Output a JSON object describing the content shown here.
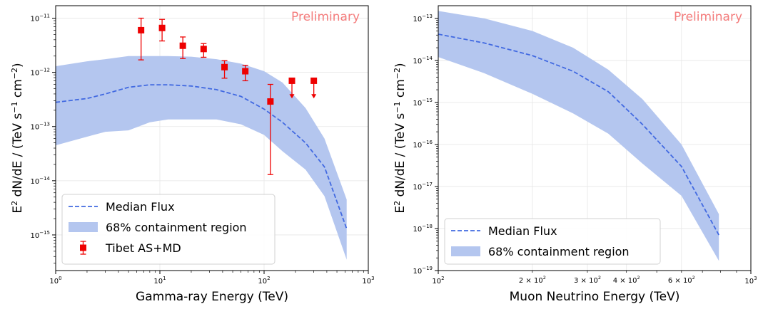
{
  "chart_data": [
    {
      "type": "line",
      "xscale": "log",
      "yscale": "log",
      "xlabel": "Gamma-ray Energy (TeV)",
      "ylabel_main": "E",
      "ylabel_sup": "2",
      "ylabel_rest": " dN/dE / (TeV s",
      "ylabel_unit_sup1": "−1",
      "ylabel_mid": " cm",
      "ylabel_unit_sup2": "−2",
      "ylabel_end": ")",
      "watermark": "Preliminary",
      "xlim": [
        1,
        1000
      ],
      "ylim": [
        2.2e-16,
        1.7e-11
      ],
      "xticks": [
        {
          "v": 1,
          "b": "10",
          "e": "0"
        },
        {
          "v": 10,
          "b": "10",
          "e": "1"
        },
        {
          "v": 100,
          "b": "10",
          "e": "2"
        },
        {
          "v": 1000,
          "b": "10",
          "e": "3"
        }
      ],
      "yticks": [
        {
          "v": 1e-15,
          "b": "10",
          "e": "−15"
        },
        {
          "v": 1e-14,
          "b": "10",
          "e": "−14"
        },
        {
          "v": 1e-13,
          "b": "10",
          "e": "−13"
        },
        {
          "v": 1e-12,
          "b": "10",
          "e": "−12"
        },
        {
          "v": 1e-11,
          "b": "10",
          "e": "−11"
        }
      ],
      "grid": true,
      "legend_position": "lower-left",
      "legend": [
        "Median Flux",
        "68% containment region",
        "Tibet AS+MD"
      ],
      "colors": {
        "median": "#4169e1",
        "band": "#b4c6ef",
        "data": "#ee0000",
        "watermark": "#f47c7c"
      },
      "series": [
        {
          "name": "Median Flux",
          "style": "dashed",
          "x": [
            1,
            2,
            3,
            5,
            8,
            12,
            20,
            35,
            60,
            100,
            150,
            250,
            380,
            620
          ],
          "y": [
            2.8e-13,
            3.3e-13,
            4e-13,
            5.3e-13,
            5.9e-13,
            5.9e-13,
            5.6e-13,
            4.8e-13,
            3.6e-13,
            2.1e-13,
            1.2e-13,
            5e-14,
            1.8e-14,
            1.3e-15
          ]
        },
        {
          "name": "68% containment region",
          "style": "band",
          "x": [
            1,
            2,
            3,
            5,
            8,
            12,
            20,
            35,
            60,
            100,
            150,
            250,
            380,
            620
          ],
          "y_low": [
            4.5e-14,
            6.5e-14,
            8e-14,
            8.5e-14,
            1.2e-13,
            1.35e-13,
            1.35e-13,
            1.35e-13,
            1.1e-13,
            7e-14,
            3.5e-14,
            1.6e-14,
            5.2e-15,
            3.5e-16
          ],
          "y_high": [
            1.3e-12,
            1.6e-12,
            1.75e-12,
            2e-12,
            2e-12,
            2e-12,
            1.95e-12,
            1.75e-12,
            1.45e-12,
            1.05e-12,
            6.5e-13,
            2.2e-13,
            6e-14,
            4.5e-15
          ]
        },
        {
          "name": "Tibet AS+MD",
          "style": "points",
          "points": [
            {
              "x": 6.6,
              "y": 6e-12,
              "lo": 1.7e-12,
              "hi": 1e-11
            },
            {
              "x": 10.5,
              "y": 6.6e-12,
              "lo": 3.8e-12,
              "hi": 9.5e-12
            },
            {
              "x": 16.6,
              "y": 3.1e-12,
              "lo": 1.8e-12,
              "hi": 4.5e-12
            },
            {
              "x": 26.3,
              "y": 2.7e-12,
              "lo": 1.9e-12,
              "hi": 3.4e-12
            },
            {
              "x": 41.7,
              "y": 1.25e-12,
              "lo": 7.8e-13,
              "hi": 1.65e-12
            },
            {
              "x": 66,
              "y": 1.05e-12,
              "lo": 7e-13,
              "hi": 1.35e-12
            },
            {
              "x": 115,
              "y": 2.9e-13,
              "lo": 1.3e-14,
              "hi": 6e-13
            }
          ],
          "upper_limits": [
            {
              "x": 185,
              "y": 7e-13,
              "arrow_to": 3.3e-13
            },
            {
              "x": 300,
              "y": 7e-13,
              "arrow_to": 3.3e-13
            }
          ]
        }
      ]
    },
    {
      "type": "line",
      "xscale": "log",
      "yscale": "log",
      "xlabel": "Muon Neutrino Energy (TeV)",
      "ylabel_main": "E",
      "ylabel_sup": "2",
      "ylabel_rest": " dN/dE / (TeV s",
      "ylabel_unit_sup1": "−1",
      "ylabel_mid": " cm",
      "ylabel_unit_sup2": "−2",
      "ylabel_end": ")",
      "watermark": "Preliminary",
      "xlim": [
        100,
        1000
      ],
      "ylim": [
        1e-19,
        2e-13
      ],
      "xticks": [
        {
          "v": 100,
          "b": "10",
          "e": "2"
        },
        {
          "v": 1000,
          "b": "10",
          "e": "3"
        }
      ],
      "xticks_minor_labeled": [
        {
          "v": 200,
          "m": "2 × 10",
          "e": "2"
        },
        {
          "v": 300,
          "m": "3 × 10",
          "e": "2"
        },
        {
          "v": 400,
          "m": "4 × 10",
          "e": "2"
        },
        {
          "v": 600,
          "m": "6 × 10",
          "e": "2"
        }
      ],
      "yticks": [
        {
          "v": 1e-19,
          "b": "10",
          "e": "−19"
        },
        {
          "v": 1e-18,
          "b": "10",
          "e": "−18"
        },
        {
          "v": 1e-17,
          "b": "10",
          "e": "−17"
        },
        {
          "v": 1e-16,
          "b": "10",
          "e": "−16"
        },
        {
          "v": 1e-15,
          "b": "10",
          "e": "−15"
        },
        {
          "v": 1e-14,
          "b": "10",
          "e": "−14"
        },
        {
          "v": 1e-13,
          "b": "10",
          "e": "−13"
        }
      ],
      "grid": true,
      "legend_position": "lower-left",
      "legend": [
        "Median Flux",
        "68% containment region"
      ],
      "colors": {
        "median": "#4169e1",
        "band": "#b4c6ef",
        "watermark": "#f47c7c"
      },
      "series": [
        {
          "name": "Median Flux",
          "style": "dashed",
          "x": [
            100,
            140,
            200,
            270,
            350,
            450,
            600,
            790
          ],
          "y": [
            4.2e-14,
            2.6e-14,
            1.3e-14,
            5.5e-15,
            1.8e-15,
            3e-16,
            3e-17,
            7e-19
          ]
        },
        {
          "name": "68% containment region",
          "style": "band",
          "x": [
            100,
            140,
            200,
            270,
            350,
            450,
            600,
            790
          ],
          "y_low": [
            1.2e-14,
            5e-15,
            1.6e-15,
            5.5e-16,
            1.8e-16,
            3.5e-17,
            6e-18,
            1.7e-19
          ],
          "y_high": [
            1.5e-13,
            1e-13,
            5e-14,
            2e-14,
            6e-15,
            1.2e-15,
            1e-16,
            2.2e-18
          ]
        }
      ]
    }
  ]
}
